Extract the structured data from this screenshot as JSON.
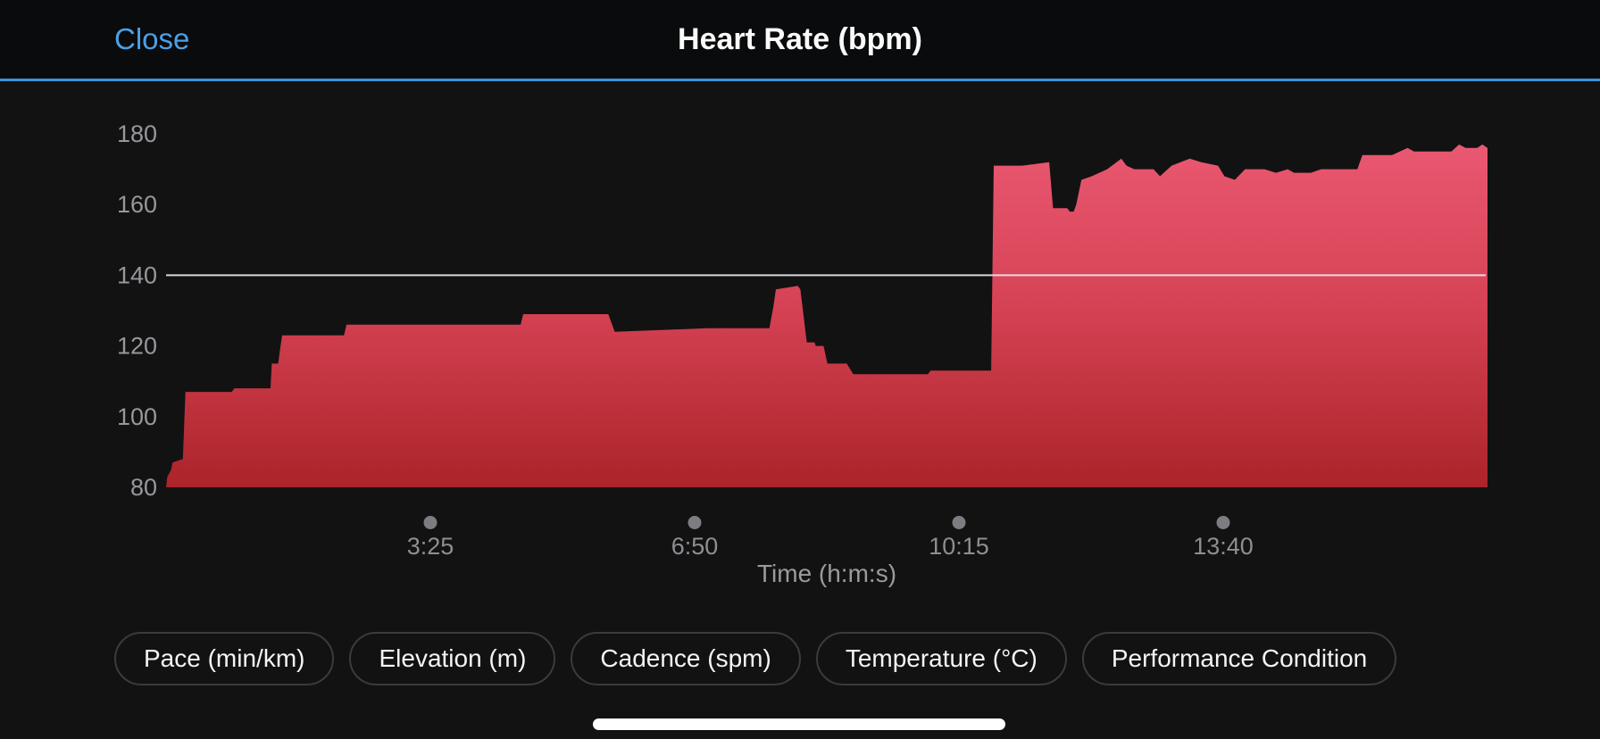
{
  "header": {
    "close_label": "Close",
    "title": "Heart Rate (bpm)"
  },
  "chart_data": {
    "type": "area",
    "title": "Heart Rate (bpm)",
    "xlabel": "Time (h:m:s)",
    "ylabel": "",
    "ylim": [
      80,
      180
    ],
    "yticks": [
      80,
      100,
      120,
      140,
      160,
      180
    ],
    "reference_line_y": 140,
    "grid": false,
    "legend": false,
    "duration_seconds": 1025,
    "xticks": [
      {
        "seconds": 205,
        "label": "3:25"
      },
      {
        "seconds": 410,
        "label": "6:50"
      },
      {
        "seconds": 615,
        "label": "10:15"
      },
      {
        "seconds": 820,
        "label": "13:40"
      }
    ],
    "series": [
      {
        "name": "Heart Rate",
        "unit": "bpm",
        "points_t_bpm": [
          [
            0,
            80
          ],
          [
            1,
            83
          ],
          [
            4,
            85
          ],
          [
            5,
            87
          ],
          [
            13,
            88
          ],
          [
            15,
            107
          ],
          [
            51,
            107
          ],
          [
            53,
            108
          ],
          [
            81,
            108
          ],
          [
            82,
            115
          ],
          [
            87,
            115
          ],
          [
            88,
            118
          ],
          [
            90,
            123
          ],
          [
            138,
            123
          ],
          [
            140,
            126
          ],
          [
            275,
            126
          ],
          [
            277,
            129
          ],
          [
            343,
            129
          ],
          [
            348,
            124
          ],
          [
            420,
            125
          ],
          [
            468,
            125
          ],
          [
            471,
            131
          ],
          [
            473,
            136
          ],
          [
            490,
            137
          ],
          [
            492,
            136
          ],
          [
            497,
            121
          ],
          [
            503,
            121
          ],
          [
            504,
            120
          ],
          [
            510,
            120
          ],
          [
            513,
            115
          ],
          [
            528,
            115
          ],
          [
            533,
            112
          ],
          [
            591,
            112
          ],
          [
            593,
            113
          ],
          [
            640,
            113
          ],
          [
            642,
            171
          ],
          [
            664,
            171
          ],
          [
            685,
            172
          ],
          [
            688,
            159
          ],
          [
            699,
            159
          ],
          [
            701,
            158
          ],
          [
            704,
            158
          ],
          [
            706,
            160
          ],
          [
            710,
            167
          ],
          [
            718,
            168
          ],
          [
            730,
            170
          ],
          [
            741,
            173
          ],
          [
            745,
            171
          ],
          [
            751,
            170
          ],
          [
            766,
            170
          ],
          [
            771,
            168
          ],
          [
            780,
            171
          ],
          [
            794,
            173
          ],
          [
            803,
            172
          ],
          [
            816,
            171
          ],
          [
            821,
            168
          ],
          [
            829,
            167
          ],
          [
            837,
            170
          ],
          [
            852,
            170
          ],
          [
            861,
            169
          ],
          [
            870,
            170
          ],
          [
            875,
            169
          ],
          [
            888,
            169
          ],
          [
            896,
            170
          ],
          [
            924,
            170
          ],
          [
            928,
            174
          ],
          [
            951,
            174
          ],
          [
            963,
            176
          ],
          [
            968,
            175
          ],
          [
            997,
            175
          ],
          [
            1003,
            177
          ],
          [
            1008,
            176
          ],
          [
            1017,
            176
          ],
          [
            1021,
            177
          ],
          [
            1025,
            176
          ]
        ]
      }
    ],
    "colors": {
      "area_top": "#ec5b75",
      "area_mid": "#d74356",
      "area_bottom": "#ab2429",
      "reference_line": "#e8e8ec",
      "tick_dot": "#7d7d81",
      "xtick_label": "#8e8e93",
      "ytick_label": "#97979c",
      "axis_title": "#9a9a9f"
    }
  },
  "buttons": [
    {
      "label": "Pace (min/km)"
    },
    {
      "label": "Elevation (m)"
    },
    {
      "label": "Cadence (spm)"
    },
    {
      "label": "Temperature (°C)"
    },
    {
      "label": "Performance Condition"
    }
  ],
  "colors": {
    "accent_blue": "#4aa0e8",
    "header_underline": "#3c92da"
  }
}
